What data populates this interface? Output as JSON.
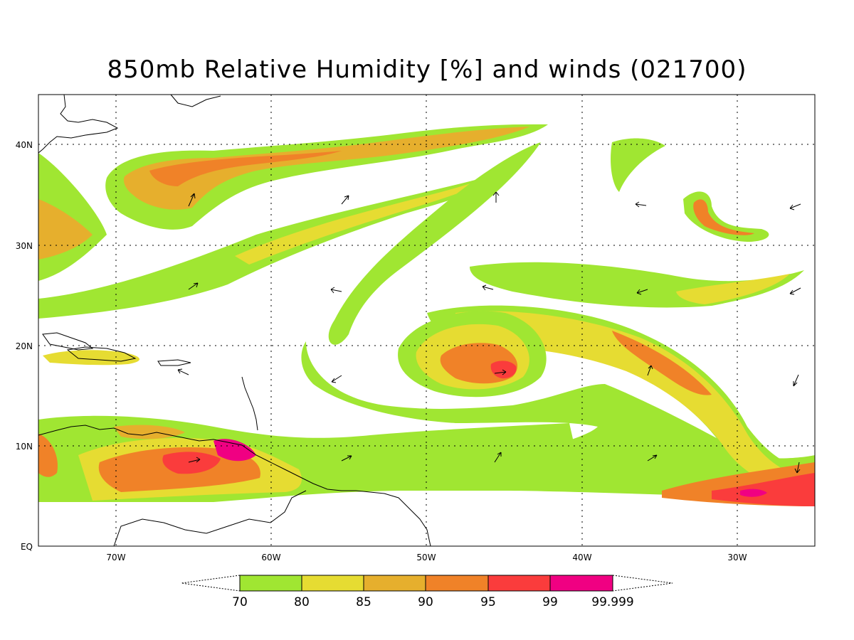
{
  "title": "850mb Relative Humidity [%] and winds (021700)",
  "colors": {
    "c70": "#a0e632",
    "c80": "#e6dc32",
    "c85": "#e6af2d",
    "c90": "#f08228",
    "c95": "#fa3c3c",
    "c99": "#f00082",
    "coast": "#000000",
    "grid": "#000000"
  },
  "lon_labels": [
    "70W",
    "60W",
    "50W",
    "40W",
    "30W"
  ],
  "lat_labels": [
    "40N",
    "30N",
    "20N",
    "10N",
    "EQ"
  ],
  "colorbar": {
    "labels": [
      "70",
      "80",
      "85",
      "90",
      "95",
      "99",
      "99.999"
    ],
    "levels": [
      70,
      80,
      85,
      90,
      95,
      99,
      99.999
    ]
  }
}
